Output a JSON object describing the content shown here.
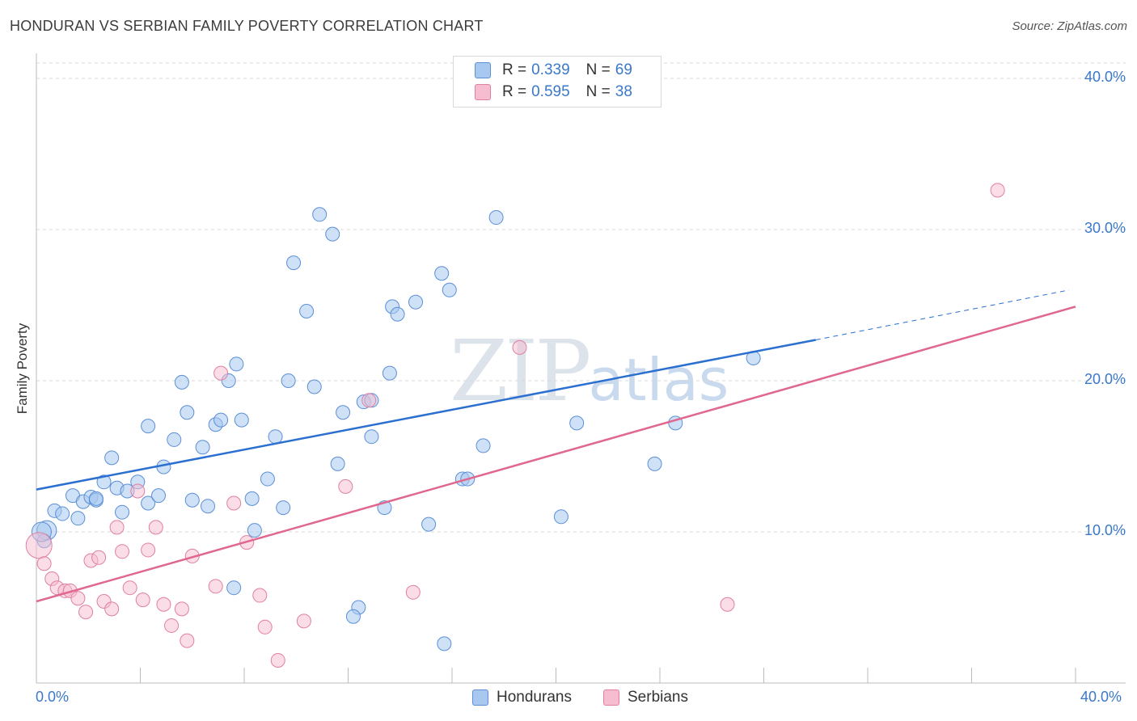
{
  "title": "HONDURAN VS SERBIAN FAMILY POVERTY CORRELATION CHART",
  "source": "Source: ZipAtlas.com",
  "watermark": {
    "zip": "ZIP",
    "atlas": "atlas"
  },
  "colors": {
    "hondurans_fill": "#a8c8f0",
    "hondurans_stroke": "#5b8fd6",
    "hondurans_line": "#2b6fd0",
    "serbians_fill": "#f6bcd0",
    "serbians_stroke": "#e07fa2",
    "serbians_line": "#e0678f",
    "grid": "#d8d8d8",
    "tick_text": "#3a78c9"
  },
  "legend": {
    "rows": [
      {
        "r_label": "R =",
        "r_value": "0.339",
        "n_label": "N =",
        "n_value": "69"
      },
      {
        "r_label": "R =",
        "r_value": "0.595",
        "n_label": "N =",
        "n_value": "38"
      }
    ]
  },
  "bottom_legend": {
    "hondurans": "Hondurans",
    "serbians": "Serbians"
  },
  "chart_data": {
    "type": "scatter",
    "title": "HONDURAN VS SERBIAN FAMILY POVERTY CORRELATION CHART",
    "xlabel": "",
    "ylabel": "Family Poverty",
    "xlim": [
      0,
      40
    ],
    "ylim": [
      0,
      40
    ],
    "x_tick_labels": [
      "0.0%",
      "40.0%"
    ],
    "y_tick_labels": [
      "10.0%",
      "20.0%",
      "30.0%",
      "40.0%"
    ],
    "y_ticks": [
      10,
      20,
      30,
      40
    ],
    "grid": true,
    "legend_position": "top-center",
    "series": [
      {
        "name": "Hondurans",
        "points": [
          [
            0.4,
            10.1
          ],
          [
            0.7,
            11.4
          ],
          [
            1.0,
            11.2
          ],
          [
            1.4,
            12.4
          ],
          [
            1.6,
            10.9
          ],
          [
            1.8,
            12.0
          ],
          [
            2.1,
            12.3
          ],
          [
            2.3,
            12.1
          ],
          [
            2.6,
            13.3
          ],
          [
            2.9,
            14.9
          ],
          [
            3.1,
            12.9
          ],
          [
            3.3,
            11.3
          ],
          [
            3.5,
            12.7
          ],
          [
            3.9,
            13.3
          ],
          [
            4.3,
            11.9
          ],
          [
            4.7,
            12.4
          ],
          [
            4.9,
            14.3
          ],
          [
            4.3,
            17.0
          ],
          [
            5.3,
            16.1
          ],
          [
            5.6,
            19.9
          ],
          [
            5.8,
            17.9
          ],
          [
            6.0,
            12.1
          ],
          [
            6.4,
            15.6
          ],
          [
            6.6,
            11.7
          ],
          [
            6.9,
            17.1
          ],
          [
            7.1,
            17.4
          ],
          [
            7.4,
            20.0
          ],
          [
            7.6,
            6.3
          ],
          [
            7.7,
            21.1
          ],
          [
            7.9,
            17.4
          ],
          [
            8.3,
            12.2
          ],
          [
            8.4,
            10.1
          ],
          [
            8.9,
            13.5
          ],
          [
            9.2,
            16.3
          ],
          [
            9.5,
            11.6
          ],
          [
            9.7,
            20.0
          ],
          [
            9.9,
            27.8
          ],
          [
            10.4,
            24.6
          ],
          [
            10.7,
            19.6
          ],
          [
            10.9,
            31.0
          ],
          [
            11.4,
            29.7
          ],
          [
            11.6,
            14.5
          ],
          [
            11.8,
            17.9
          ],
          [
            12.4,
            5.0
          ],
          [
            12.2,
            4.4
          ],
          [
            12.6,
            18.6
          ],
          [
            12.9,
            18.7
          ],
          [
            12.9,
            16.3
          ],
          [
            13.4,
            11.6
          ],
          [
            13.6,
            20.5
          ],
          [
            13.7,
            24.9
          ],
          [
            13.9,
            24.4
          ],
          [
            14.6,
            25.2
          ],
          [
            15.1,
            10.5
          ],
          [
            15.6,
            27.1
          ],
          [
            15.9,
            26.0
          ],
          [
            15.7,
            2.6
          ],
          [
            16.4,
            13.5
          ],
          [
            16.6,
            13.5
          ],
          [
            17.2,
            15.7
          ],
          [
            17.7,
            30.8
          ],
          [
            20.2,
            11.0
          ],
          [
            20.8,
            17.2
          ],
          [
            23.8,
            14.5
          ],
          [
            24.6,
            17.2
          ],
          [
            27.6,
            21.5
          ],
          [
            0.3,
            9.4
          ],
          [
            0.2,
            10.0
          ],
          [
            2.3,
            12.2
          ]
        ],
        "trend": {
          "x": [
            0,
            30
          ],
          "y": [
            12.8,
            22.7
          ],
          "extends_dashed_to": [
            40,
            26.0
          ]
        }
      },
      {
        "name": "Serbians",
        "points": [
          [
            0.1,
            9.1
          ],
          [
            0.3,
            7.9
          ],
          [
            0.6,
            6.9
          ],
          [
            0.8,
            6.3
          ],
          [
            1.1,
            6.1
          ],
          [
            1.3,
            6.1
          ],
          [
            1.6,
            5.6
          ],
          [
            1.9,
            4.7
          ],
          [
            2.1,
            8.1
          ],
          [
            2.4,
            8.3
          ],
          [
            2.6,
            5.4
          ],
          [
            2.9,
            4.9
          ],
          [
            3.1,
            10.3
          ],
          [
            3.3,
            8.7
          ],
          [
            3.6,
            6.3
          ],
          [
            3.9,
            12.7
          ],
          [
            4.1,
            5.5
          ],
          [
            4.3,
            8.8
          ],
          [
            4.6,
            10.3
          ],
          [
            4.9,
            5.2
          ],
          [
            5.2,
            3.8
          ],
          [
            5.6,
            4.9
          ],
          [
            5.8,
            2.8
          ],
          [
            6.0,
            8.4
          ],
          [
            6.9,
            6.4
          ],
          [
            7.1,
            20.5
          ],
          [
            7.6,
            11.9
          ],
          [
            8.1,
            9.3
          ],
          [
            8.6,
            5.8
          ],
          [
            8.8,
            3.7
          ],
          [
            9.3,
            1.5
          ],
          [
            10.3,
            4.1
          ],
          [
            11.9,
            13.0
          ],
          [
            12.8,
            18.7
          ],
          [
            14.5,
            6.0
          ],
          [
            18.6,
            22.2
          ],
          [
            26.6,
            5.2
          ],
          [
            37.0,
            32.6
          ]
        ],
        "trend": {
          "x": [
            0,
            40
          ],
          "y": [
            5.4,
            24.9
          ]
        }
      }
    ]
  }
}
